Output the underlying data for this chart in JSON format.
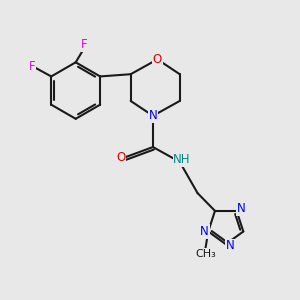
{
  "bg_color": "#e8e8e8",
  "bond_color": "#1a1a1a",
  "bond_width": 1.5,
  "atom_colors": {
    "F": "#ee00ee",
    "O": "#dd0000",
    "N": "#0000ee",
    "NH": "#008888",
    "C": "#1a1a1a"
  },
  "font_size": 8.5,
  "fig_width": 3.0,
  "fig_height": 3.0,
  "dpi": 100
}
